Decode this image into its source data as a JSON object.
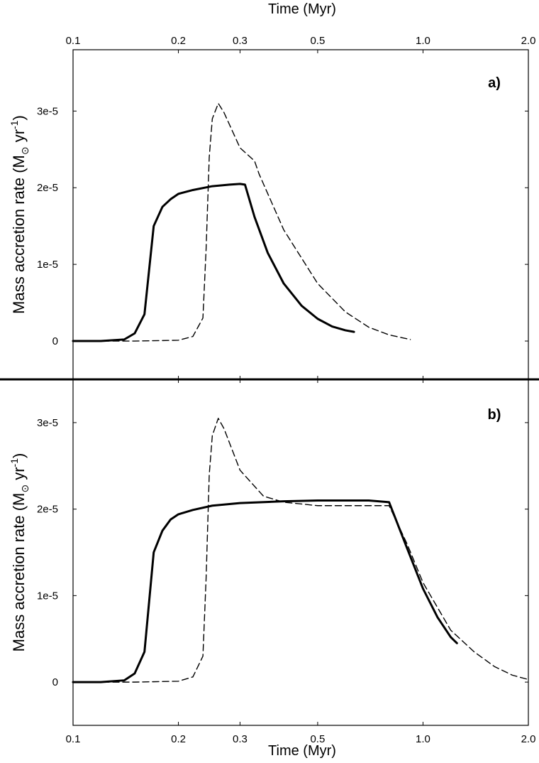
{
  "chart_data": {
    "type": "line",
    "xscale": "log",
    "xlim": [
      0.1,
      2.0
    ],
    "x_ticks": [
      0.1,
      0.2,
      0.3,
      0.5,
      1.0,
      2.0
    ],
    "x_tick_labels": [
      "0.1",
      "0.2",
      "0.3",
      "0.5",
      "1.0",
      "2.0"
    ],
    "xlabel": "Time (Myr)",
    "top_xlabel": "Time (Myr)",
    "ylabel": {
      "prefix": "Mass accretion rate (M",
      "sun_symbol": "⊙",
      "unit": " yr",
      "exponent": "-1",
      "suffix": ")"
    },
    "panels": [
      {
        "label": "a)",
        "ylim": [
          -5e-06,
          3.8e-05
        ],
        "y_ticks": [
          0,
          1e-05,
          2e-05,
          3e-05
        ],
        "y_tick_labels": [
          "0",
          "1e-5",
          "2e-5",
          "3e-5"
        ],
        "series": [
          {
            "name": "solid",
            "style": "solid",
            "x": [
              0.1,
              0.12,
              0.14,
              0.15,
              0.16,
              0.17,
              0.18,
              0.19,
              0.2,
              0.22,
              0.25,
              0.28,
              0.3,
              0.31,
              0.33,
              0.36,
              0.4,
              0.45,
              0.5,
              0.55,
              0.6,
              0.635
            ],
            "y": [
              0,
              0,
              2e-07,
              1e-06,
              3.5e-06,
              1.5e-05,
              1.75e-05,
              1.85e-05,
              1.92e-05,
              1.97e-05,
              2.02e-05,
              2.04e-05,
              2.05e-05,
              2.04e-05,
              1.62e-05,
              1.15e-05,
              7.5e-06,
              4.6e-06,
              2.9e-06,
              1.9e-06,
              1.4e-06,
              1.2e-06
            ]
          },
          {
            "name": "dashed",
            "style": "dashed",
            "x": [
              0.1,
              0.15,
              0.2,
              0.22,
              0.235,
              0.24,
              0.245,
              0.25,
              0.26,
              0.27,
              0.3,
              0.33,
              0.34,
              0.4,
              0.5,
              0.6,
              0.7,
              0.8,
              0.92
            ],
            "y": [
              0,
              0,
              1e-07,
              6e-07,
              3e-06,
              1.2e-05,
              2.4e-05,
              2.9e-05,
              3.1e-05,
              2.98e-05,
              2.52e-05,
              2.35e-05,
              2.18e-05,
              1.45e-05,
              7.5e-06,
              3.8e-06,
              1.8e-06,
              8e-07,
              2e-07
            ]
          }
        ]
      },
      {
        "label": "b)",
        "ylim": [
          -5e-06,
          3.5e-05
        ],
        "y_ticks": [
          0,
          1e-05,
          2e-05,
          3e-05
        ],
        "y_tick_labels": [
          "0",
          "1e-5",
          "2e-5",
          "3e-5"
        ],
        "series": [
          {
            "name": "solid",
            "style": "solid",
            "x": [
              0.1,
              0.12,
              0.14,
              0.15,
              0.16,
              0.17,
              0.18,
              0.19,
              0.2,
              0.22,
              0.25,
              0.3,
              0.4,
              0.5,
              0.6,
              0.7,
              0.8,
              0.9,
              1.0,
              1.1,
              1.2,
              1.25
            ],
            "y": [
              0,
              0,
              2e-07,
              1e-06,
              3.5e-06,
              1.5e-05,
              1.75e-05,
              1.88e-05,
              1.94e-05,
              1.99e-05,
              2.04e-05,
              2.07e-05,
              2.09e-05,
              2.1e-05,
              2.1e-05,
              2.1e-05,
              2.08e-05,
              1.55e-05,
              1.08e-05,
              7.5e-06,
              5.2e-06,
              4.5e-06
            ]
          },
          {
            "name": "dashed",
            "style": "dashed",
            "x": [
              0.1,
              0.15,
              0.2,
              0.22,
              0.235,
              0.24,
              0.245,
              0.25,
              0.26,
              0.27,
              0.3,
              0.35,
              0.4,
              0.5,
              0.6,
              0.7,
              0.8,
              0.9,
              1.0,
              1.2,
              1.4,
              1.6,
              1.8,
              2.0
            ],
            "y": [
              0,
              0,
              1e-07,
              6e-07,
              3e-06,
              1.2e-05,
              2.4e-05,
              2.85e-05,
              3.05e-05,
              2.93e-05,
              2.45e-05,
              2.15e-05,
              2.08e-05,
              2.04e-05,
              2.04e-05,
              2.04e-05,
              2.04e-05,
              1.6e-05,
              1.15e-05,
              6e-06,
              3.5e-06,
              1.8e-06,
              8e-07,
              3e-07
            ]
          }
        ]
      }
    ]
  }
}
